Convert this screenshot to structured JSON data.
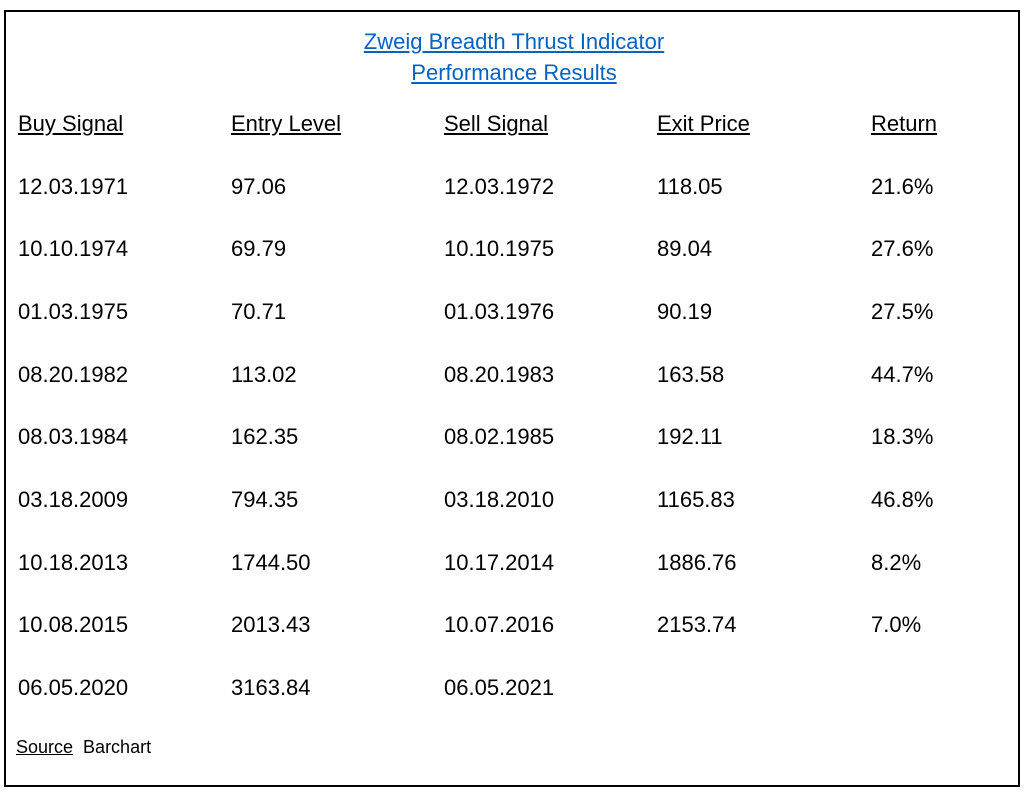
{
  "title_line1": "Zweig Breadth Thrust Indicator",
  "title_line2": "Performance Results",
  "columns": [
    "Buy Signal",
    "Entry Level",
    "Sell Signal",
    "Exit Price",
    "Return"
  ],
  "rows": [
    [
      "12.03.1971",
      "97.06",
      "12.03.1972",
      "118.05",
      "21.6%"
    ],
    [
      "10.10.1974",
      "69.79",
      "10.10.1975",
      "89.04",
      "27.6%"
    ],
    [
      "01.03.1975",
      "70.71",
      "01.03.1976",
      "90.19",
      "27.5%"
    ],
    [
      "08.20.1982",
      "113.02",
      "08.20.1983",
      "163.58",
      "44.7%"
    ],
    [
      "08.03.1984",
      "162.35",
      "08.02.1985",
      "192.11",
      "18.3%"
    ],
    [
      "03.18.2009",
      "794.35",
      "03.18.2010",
      "1165.83",
      "46.8%"
    ],
    [
      "10.18.2013",
      "1744.50",
      "10.17.2014",
      "1886.76",
      "8.2%"
    ],
    [
      "10.08.2015",
      "2013.43",
      "10.07.2016",
      "2153.74",
      "7.0%"
    ],
    [
      "06.05.2020",
      "3163.84",
      "06.05.2021",
      "",
      ""
    ]
  ],
  "source_label": "Source",
  "source_value": "Barchart",
  "link_color": "#0563c1"
}
